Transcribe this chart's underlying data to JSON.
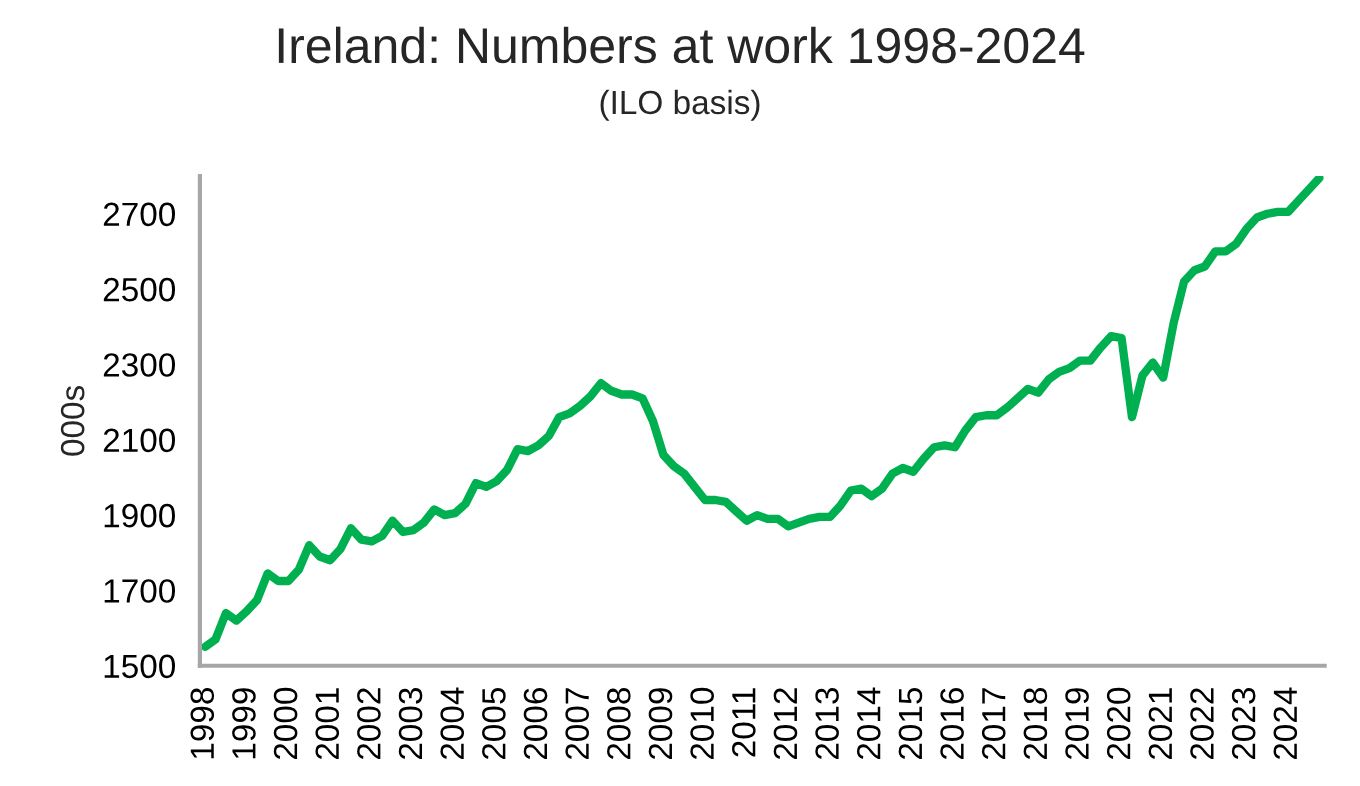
{
  "chart_data": {
    "type": "line",
    "title": "Ireland: Numbers at work 1998-2024",
    "subtitle": "(ILO basis)",
    "ylabel": "000s",
    "categories": [
      "1998",
      null,
      null,
      null,
      "1999",
      null,
      null,
      null,
      "2000",
      null,
      null,
      null,
      "2001",
      null,
      null,
      null,
      "2002",
      null,
      null,
      null,
      "2003",
      null,
      null,
      null,
      "2004",
      null,
      null,
      null,
      "2005",
      null,
      null,
      null,
      "2006",
      null,
      null,
      null,
      "2007",
      null,
      null,
      null,
      "2008",
      null,
      null,
      null,
      "2009",
      null,
      null,
      null,
      "2010",
      null,
      null,
      null,
      "2011",
      null,
      null,
      null,
      "2012",
      null,
      null,
      null,
      "2013",
      null,
      null,
      null,
      "2014",
      null,
      null,
      null,
      "2015",
      null,
      null,
      null,
      "2016",
      null,
      null,
      null,
      "2017",
      null,
      null,
      null,
      "2018",
      null,
      null,
      null,
      "2019",
      null,
      null,
      null,
      "2020",
      null,
      null,
      null,
      "2021",
      null,
      null,
      null,
      "2022",
      null,
      null,
      null,
      "2023",
      null,
      null,
      null,
      "2024",
      null,
      null,
      null
    ],
    "series": [
      {
        "color": "#00b050",
        "values": [
          1550,
          1570,
          1640,
          1620,
          1645,
          1675,
          1745,
          1725,
          1725,
          1755,
          1820,
          1790,
          1780,
          1810,
          1865,
          1835,
          1830,
          1845,
          1885,
          1855,
          1860,
          1880,
          1915,
          1900,
          1905,
          1930,
          1985,
          1975,
          1990,
          2020,
          2075,
          2070,
          2085,
          2110,
          2160,
          2170,
          2190,
          2215,
          2250,
          2230,
          2220,
          2220,
          2210,
          2150,
          2060,
          2030,
          2010,
          1975,
          1940,
          1940,
          1935,
          1910,
          1885,
          1900,
          1890,
          1890,
          1870,
          1880,
          1890,
          1895,
          1895,
          1925,
          1965,
          1970,
          1950,
          1970,
          2010,
          2025,
          2015,
          2050,
          2080,
          2085,
          2080,
          2125,
          2160,
          2165,
          2165,
          2185,
          2210,
          2235,
          2225,
          2260,
          2280,
          2290,
          2310,
          2310,
          2345,
          2375,
          2370,
          2160,
          2270,
          2305,
          2265,
          2410,
          2520,
          2550,
          2560,
          2600,
          2600,
          2620,
          2660,
          2690,
          2700,
          2705,
          2705,
          2735,
          2765,
          2795
        ]
      }
    ],
    "ylim": [
      1500,
      2800
    ],
    "yticks": [
      1500,
      1700,
      1900,
      2100,
      2300,
      2500,
      2700
    ],
    "grid": false,
    "marker": "none",
    "line_style": "solid"
  }
}
